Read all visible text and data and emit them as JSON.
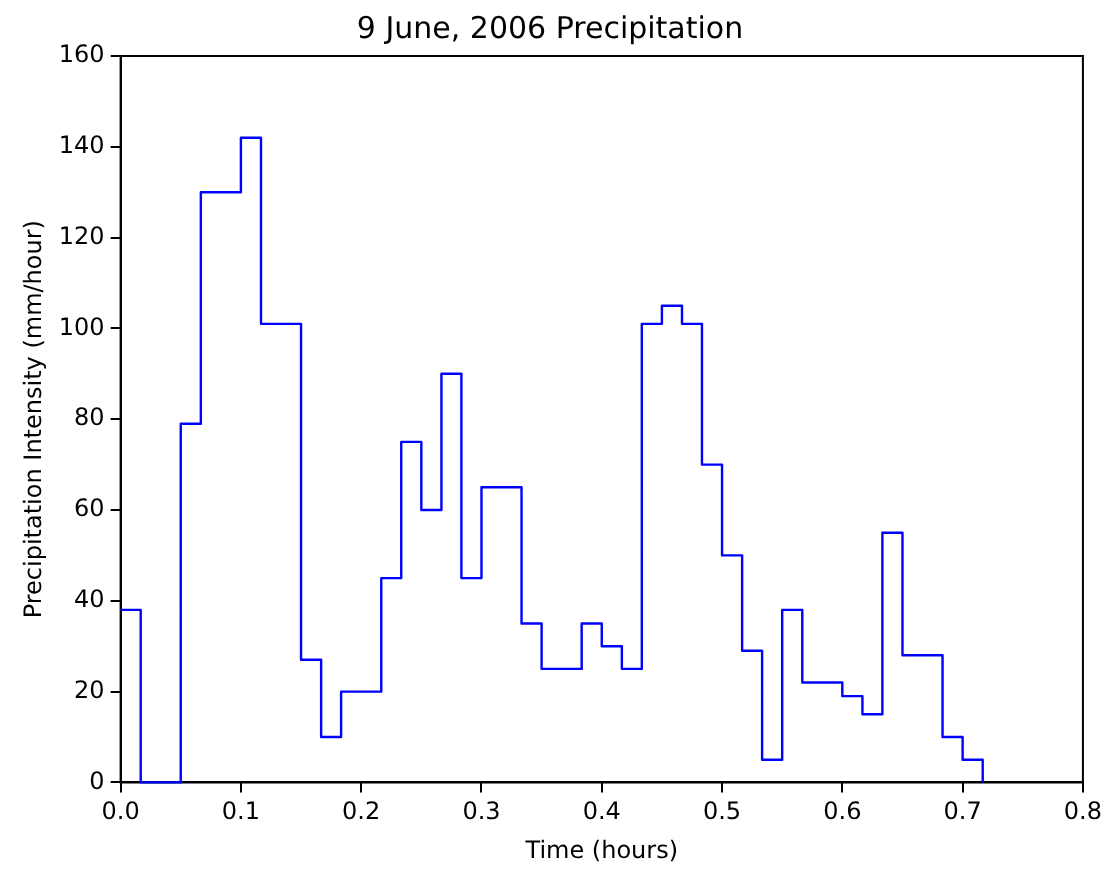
{
  "chart_data": {
    "type": "step",
    "title": "9 June, 2006 Precipitation",
    "xlabel": "Time (hours)",
    "ylabel": "Precipitation Intensity (mm/hour)",
    "x": [
      0,
      0.0167,
      0.0333,
      0.05,
      0.0667,
      0.0833,
      0.1,
      0.1167,
      0.1333,
      0.15,
      0.1667,
      0.1833,
      0.2,
      0.2167,
      0.2333,
      0.25,
      0.2667,
      0.2833,
      0.3,
      0.3167,
      0.3333,
      0.35,
      0.3667,
      0.3833,
      0.4,
      0.4167,
      0.4333,
      0.45,
      0.4667,
      0.4833,
      0.5,
      0.5167,
      0.5333,
      0.55,
      0.5667,
      0.5833,
      0.6,
      0.6167,
      0.6333,
      0.65,
      0.6667,
      0.6833,
      0.7,
      0.7167
    ],
    "series": [
      {
        "color": "#0000ff",
        "values": [
          38,
          0,
          0,
          79,
          130,
          130,
          142,
          101,
          101,
          27,
          10,
          20,
          20,
          45,
          75,
          60,
          90,
          45,
          65,
          65,
          35,
          25,
          25,
          35,
          30,
          25,
          101,
          105,
          101,
          70,
          50,
          29,
          5,
          38,
          22,
          22,
          19,
          15,
          55,
          28,
          28,
          10,
          5,
          0
        ]
      }
    ],
    "xlim": [
      0,
      0.8
    ],
    "xticks": [
      {
        "value": 0,
        "label": "0.0"
      },
      0.1,
      0.2,
      0.3,
      0.4,
      0.5,
      0.6,
      0.7,
      0.8
    ],
    "ylim": [
      0,
      160
    ],
    "yticks": [
      0,
      20,
      40,
      60,
      80,
      100,
      120,
      140,
      160
    ],
    "grid": false,
    "legend": false
  }
}
